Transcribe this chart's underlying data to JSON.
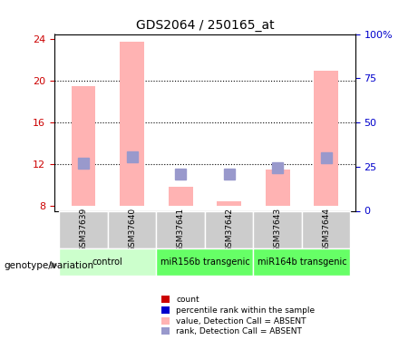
{
  "title": "GDS2064 / 250165_at",
  "samples": [
    "GSM37639",
    "GSM37640",
    "GSM37641",
    "GSM37642",
    "GSM37643",
    "GSM37644"
  ],
  "bar_bottoms": [
    8,
    8,
    8,
    8,
    8,
    8
  ],
  "bar_tops": [
    19.5,
    23.8,
    9.8,
    8.4,
    11.5,
    21.0
  ],
  "rank_positions": [
    12.1,
    12.7,
    11.0,
    11.0,
    11.6,
    12.6
  ],
  "ylim_left": [
    7.5,
    24.5
  ],
  "ylim_right": [
    0,
    100
  ],
  "yticks_left": [
    8,
    12,
    16,
    20,
    24
  ],
  "yticks_right": [
    0,
    25,
    50,
    75,
    100
  ],
  "ytick_labels_right": [
    "0",
    "25",
    "50",
    "75",
    "100%"
  ],
  "dotted_lines": [
    12,
    16,
    20
  ],
  "bar_color": "#ffb3b3",
  "rank_color": "#9999cc",
  "left_tick_color": "#cc0000",
  "right_tick_color": "#0000cc",
  "groups": [
    {
      "label": "control",
      "span": [
        0,
        2
      ],
      "color": "#ccffcc"
    },
    {
      "label": "miR156b transgenic",
      "span": [
        2,
        4
      ],
      "color": "#66ff66"
    },
    {
      "label": "miR164b transgenic",
      "span": [
        4,
        6
      ],
      "color": "#66ff66"
    }
  ],
  "legend_items": [
    {
      "label": "count",
      "color": "#cc0000",
      "marker": "s"
    },
    {
      "label": "percentile rank within the sample",
      "color": "#0000cc",
      "marker": "s"
    },
    {
      "label": "value, Detection Call = ABSENT",
      "color": "#ffb3b3",
      "marker": "s"
    },
    {
      "label": "rank, Detection Call = ABSENT",
      "color": "#9999cc",
      "marker": "s"
    }
  ],
  "genotype_label": "genotype/variation",
  "bar_width": 0.5,
  "rank_marker_size": 8
}
